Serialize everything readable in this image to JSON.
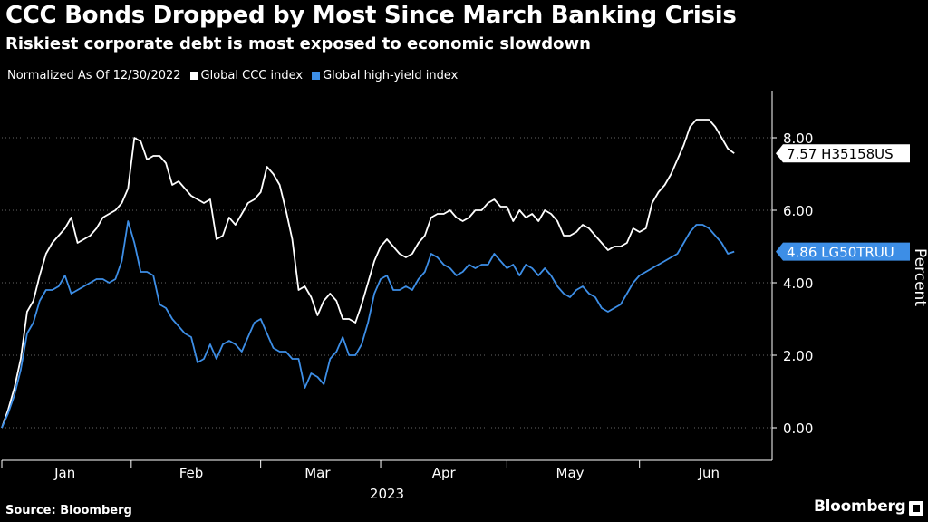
{
  "title": "CCC Bonds Dropped by Most Since March Banking Crisis",
  "subtitle": "Riskiest corporate debt is most exposed to economic slowdown",
  "legend": {
    "note": "Normalized As Of 12/30/2022",
    "items": [
      {
        "label": "Global CCC index",
        "color": "#ffffff"
      },
      {
        "label": "Global high-yield index",
        "color": "#3d8ee6"
      }
    ]
  },
  "source": "Source: Bloomberg",
  "logo": "Bloomberg",
  "chart_data": {
    "type": "line",
    "ylabel": "Percent",
    "xlabel": "2023",
    "ylim": [
      -0.9,
      9.3
    ],
    "xlim": [
      0,
      122
    ],
    "yticks": [
      0,
      2,
      4,
      6,
      8
    ],
    "ytick_labels": [
      "0.00",
      "2.00",
      "4.00",
      "6.00",
      "8.00"
    ],
    "xticks": [
      {
        "label": "Jan",
        "x": 10
      },
      {
        "label": "Feb",
        "x": 30
      },
      {
        "label": "Mar",
        "x": 50
      },
      {
        "label": "Apr",
        "x": 70
      },
      {
        "label": "May",
        "x": 90
      },
      {
        "label": "Jun",
        "x": 112
      }
    ],
    "year_label": {
      "label": "2023",
      "x": 61
    },
    "x_separators": [
      0,
      20.5,
      41,
      60,
      80,
      101
    ],
    "series": [
      {
        "name": "Global CCC index",
        "color": "#ffffff",
        "end_label": "7.57 H35158US",
        "points": [
          [
            0,
            0.0
          ],
          [
            1,
            0.5
          ],
          [
            2,
            1.1
          ],
          [
            3,
            1.9
          ],
          [
            4,
            3.2
          ],
          [
            5,
            3.5
          ],
          [
            6,
            4.2
          ],
          [
            7,
            4.8
          ],
          [
            8,
            5.1
          ],
          [
            9,
            5.3
          ],
          [
            10,
            5.5
          ],
          [
            11,
            5.8
          ],
          [
            12,
            5.1
          ],
          [
            13,
            5.2
          ],
          [
            14,
            5.3
          ],
          [
            15,
            5.5
          ],
          [
            16,
            5.8
          ],
          [
            17,
            5.9
          ],
          [
            18,
            6.0
          ],
          [
            19,
            6.2
          ],
          [
            20,
            6.6
          ],
          [
            21,
            8.0
          ],
          [
            22,
            7.9
          ],
          [
            23,
            7.4
          ],
          [
            24,
            7.5
          ],
          [
            25,
            7.5
          ],
          [
            26,
            7.3
          ],
          [
            27,
            6.7
          ],
          [
            28,
            6.8
          ],
          [
            29,
            6.6
          ],
          [
            30,
            6.4
          ],
          [
            31,
            6.3
          ],
          [
            32,
            6.2
          ],
          [
            33,
            6.3
          ],
          [
            34,
            5.2
          ],
          [
            35,
            5.3
          ],
          [
            36,
            5.8
          ],
          [
            37,
            5.6
          ],
          [
            38,
            5.9
          ],
          [
            39,
            6.2
          ],
          [
            40,
            6.3
          ],
          [
            41,
            6.5
          ],
          [
            42,
            7.2
          ],
          [
            43,
            7.0
          ],
          [
            44,
            6.7
          ],
          [
            45,
            6.0
          ],
          [
            46,
            5.2
          ],
          [
            47,
            3.8
          ],
          [
            48,
            3.9
          ],
          [
            49,
            3.6
          ],
          [
            50,
            3.1
          ],
          [
            51,
            3.5
          ],
          [
            52,
            3.7
          ],
          [
            53,
            3.5
          ],
          [
            54,
            3.0
          ],
          [
            55,
            3.0
          ],
          [
            56,
            2.9
          ],
          [
            57,
            3.4
          ],
          [
            58,
            4.0
          ],
          [
            59,
            4.6
          ],
          [
            60,
            5.0
          ],
          [
            61,
            5.2
          ],
          [
            62,
            5.0
          ],
          [
            63,
            4.8
          ],
          [
            64,
            4.7
          ],
          [
            65,
            4.8
          ],
          [
            66,
            5.1
          ],
          [
            67,
            5.3
          ],
          [
            68,
            5.8
          ],
          [
            69,
            5.9
          ],
          [
            70,
            5.9
          ],
          [
            71,
            6.0
          ],
          [
            72,
            5.8
          ],
          [
            73,
            5.7
          ],
          [
            74,
            5.8
          ],
          [
            75,
            6.0
          ],
          [
            76,
            6.0
          ],
          [
            77,
            6.2
          ],
          [
            78,
            6.3
          ],
          [
            79,
            6.1
          ],
          [
            80,
            6.1
          ],
          [
            81,
            5.7
          ],
          [
            82,
            6.0
          ],
          [
            83,
            5.8
          ],
          [
            84,
            5.9
          ],
          [
            85,
            5.7
          ],
          [
            86,
            6.0
          ],
          [
            87,
            5.9
          ],
          [
            88,
            5.7
          ],
          [
            89,
            5.3
          ],
          [
            90,
            5.3
          ],
          [
            91,
            5.4
          ],
          [
            92,
            5.6
          ],
          [
            93,
            5.5
          ],
          [
            94,
            5.3
          ],
          [
            95,
            5.1
          ],
          [
            96,
            4.9
          ],
          [
            97,
            5.0
          ],
          [
            98,
            5.0
          ],
          [
            99,
            5.1
          ],
          [
            100,
            5.5
          ],
          [
            101,
            5.4
          ],
          [
            102,
            5.5
          ],
          [
            103,
            6.2
          ],
          [
            104,
            6.5
          ],
          [
            105,
            6.7
          ],
          [
            106,
            7.0
          ],
          [
            107,
            7.4
          ],
          [
            108,
            7.8
          ],
          [
            109,
            8.3
          ],
          [
            110,
            8.5
          ],
          [
            111,
            8.5
          ],
          [
            112,
            8.5
          ],
          [
            113,
            8.3
          ],
          [
            114,
            8.0
          ],
          [
            115,
            7.7
          ],
          [
            116,
            7.57
          ]
        ]
      },
      {
        "name": "Global high-yield index",
        "color": "#3d8ee6",
        "end_label": "4.86 LG50TRUU",
        "points": [
          [
            0,
            0.0
          ],
          [
            1,
            0.4
          ],
          [
            2,
            0.9
          ],
          [
            3,
            1.6
          ],
          [
            4,
            2.6
          ],
          [
            5,
            2.9
          ],
          [
            6,
            3.5
          ],
          [
            7,
            3.8
          ],
          [
            8,
            3.8
          ],
          [
            9,
            3.9
          ],
          [
            10,
            4.2
          ],
          [
            11,
            3.7
          ],
          [
            12,
            3.8
          ],
          [
            13,
            3.9
          ],
          [
            14,
            4.0
          ],
          [
            15,
            4.1
          ],
          [
            16,
            4.1
          ],
          [
            17,
            4.0
          ],
          [
            18,
            4.1
          ],
          [
            19,
            4.6
          ],
          [
            20,
            5.7
          ],
          [
            21,
            5.1
          ],
          [
            22,
            4.3
          ],
          [
            23,
            4.3
          ],
          [
            24,
            4.2
          ],
          [
            25,
            3.4
          ],
          [
            26,
            3.3
          ],
          [
            27,
            3.0
          ],
          [
            28,
            2.8
          ],
          [
            29,
            2.6
          ],
          [
            30,
            2.5
          ],
          [
            31,
            1.8
          ],
          [
            32,
            1.9
          ],
          [
            33,
            2.3
          ],
          [
            34,
            1.9
          ],
          [
            35,
            2.3
          ],
          [
            36,
            2.4
          ],
          [
            37,
            2.3
          ],
          [
            38,
            2.1
          ],
          [
            39,
            2.5
          ],
          [
            40,
            2.9
          ],
          [
            41,
            3.0
          ],
          [
            42,
            2.6
          ],
          [
            43,
            2.2
          ],
          [
            44,
            2.1
          ],
          [
            45,
            2.1
          ],
          [
            46,
            1.9
          ],
          [
            47,
            1.9
          ],
          [
            48,
            1.1
          ],
          [
            49,
            1.5
          ],
          [
            50,
            1.4
          ],
          [
            51,
            1.2
          ],
          [
            52,
            1.9
          ],
          [
            53,
            2.1
          ],
          [
            54,
            2.5
          ],
          [
            55,
            2.0
          ],
          [
            56,
            2.0
          ],
          [
            57,
            2.3
          ],
          [
            58,
            2.9
          ],
          [
            59,
            3.7
          ],
          [
            60,
            4.1
          ],
          [
            61,
            4.2
          ],
          [
            62,
            3.8
          ],
          [
            63,
            3.8
          ],
          [
            64,
            3.9
          ],
          [
            65,
            3.8
          ],
          [
            66,
            4.1
          ],
          [
            67,
            4.3
          ],
          [
            68,
            4.8
          ],
          [
            69,
            4.7
          ],
          [
            70,
            4.5
          ],
          [
            71,
            4.4
          ],
          [
            72,
            4.2
          ],
          [
            73,
            4.3
          ],
          [
            74,
            4.5
          ],
          [
            75,
            4.4
          ],
          [
            76,
            4.5
          ],
          [
            77,
            4.5
          ],
          [
            78,
            4.8
          ],
          [
            79,
            4.6
          ],
          [
            80,
            4.4
          ],
          [
            81,
            4.5
          ],
          [
            82,
            4.2
          ],
          [
            83,
            4.5
          ],
          [
            84,
            4.4
          ],
          [
            85,
            4.2
          ],
          [
            86,
            4.4
          ],
          [
            87,
            4.2
          ],
          [
            88,
            3.9
          ],
          [
            89,
            3.7
          ],
          [
            90,
            3.6
          ],
          [
            91,
            3.8
          ],
          [
            92,
            3.9
          ],
          [
            93,
            3.7
          ],
          [
            94,
            3.6
          ],
          [
            95,
            3.3
          ],
          [
            96,
            3.2
          ],
          [
            97,
            3.3
          ],
          [
            98,
            3.4
          ],
          [
            99,
            3.7
          ],
          [
            100,
            4.0
          ],
          [
            101,
            4.2
          ],
          [
            102,
            4.3
          ],
          [
            103,
            4.4
          ],
          [
            104,
            4.5
          ],
          [
            105,
            4.6
          ],
          [
            106,
            4.7
          ],
          [
            107,
            4.8
          ],
          [
            108,
            5.1
          ],
          [
            109,
            5.4
          ],
          [
            110,
            5.6
          ],
          [
            111,
            5.6
          ],
          [
            112,
            5.5
          ],
          [
            113,
            5.3
          ],
          [
            114,
            5.1
          ],
          [
            115,
            4.8
          ],
          [
            116,
            4.86
          ]
        ]
      }
    ]
  }
}
